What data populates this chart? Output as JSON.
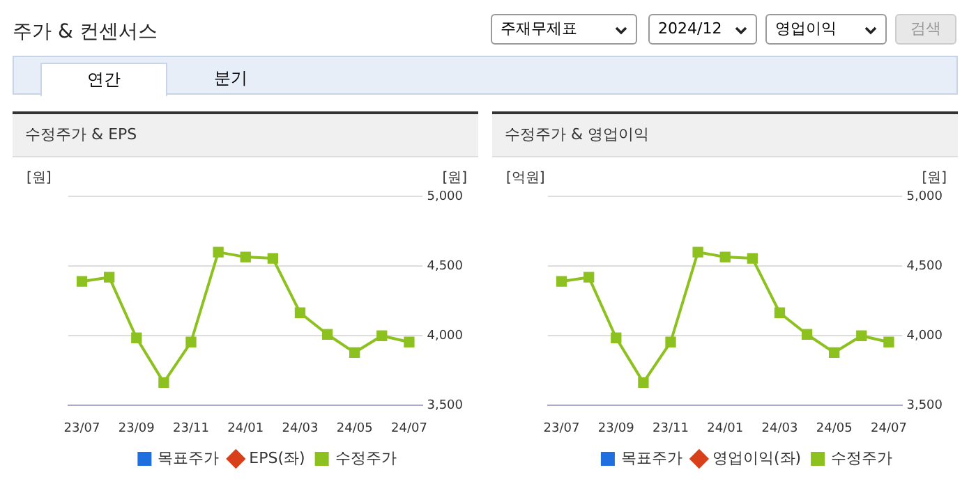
{
  "chart_data": [
    {
      "type": "other",
      "title": "주가 & 컨센서스",
      "annotations": [
        "주재무제표",
        "2024/12",
        "영업이익",
        "검색",
        "연간",
        "분기"
      ]
    },
    {
      "type": "line",
      "title": "수정주가 & EPS",
      "ylabel": "[원]",
      "y2label": "[원]",
      "categories": [
        "23/07",
        null,
        "23/09",
        null,
        "23/11",
        null,
        "24/01",
        null,
        "24/03",
        null,
        "24/05",
        null,
        "24/07"
      ],
      "series": [
        {
          "name": "목표주가",
          "color": "#1f6fe0",
          "marker": "square",
          "values": [
            null,
            null,
            null,
            null,
            null,
            null,
            null,
            null,
            null,
            null,
            null,
            null,
            null
          ]
        },
        {
          "name": "EPS(좌)",
          "color": "#d8401b",
          "marker": "diamond",
          "values": [
            null,
            null,
            null,
            null,
            null,
            null,
            null,
            null,
            null,
            null,
            null,
            null,
            null
          ]
        },
        {
          "name": "수정주가",
          "color": "#8cc11f",
          "marker": "square",
          "axis": "y2",
          "values": [
            4390,
            4420,
            3985,
            3665,
            3955,
            4600,
            4565,
            4555,
            4165,
            4010,
            3880,
            4000,
            3955
          ]
        }
      ],
      "y2lim": [
        3500,
        5000
      ],
      "y2ticks": [
        {
          "value": 3500,
          "label": "3,500"
        },
        {
          "value": 4000,
          "label": "4,000"
        },
        {
          "value": 4500,
          "label": "4,500"
        },
        {
          "value": 5000,
          "label": "5,000"
        }
      ],
      "grid": "y",
      "legend": "bottom"
    },
    {
      "type": "line",
      "title": "수정주가 & 영업이익",
      "ylabel": "[억원]",
      "y2label": "[원]",
      "categories": [
        "23/07",
        null,
        "23/09",
        null,
        "23/11",
        null,
        "24/01",
        null,
        "24/03",
        null,
        "24/05",
        null,
        "24/07"
      ],
      "series": [
        {
          "name": "목표주가",
          "color": "#1f6fe0",
          "marker": "square",
          "values": [
            null,
            null,
            null,
            null,
            null,
            null,
            null,
            null,
            null,
            null,
            null,
            null,
            null
          ]
        },
        {
          "name": "영업이익(좌)",
          "color": "#d8401b",
          "marker": "diamond",
          "values": [
            null,
            null,
            null,
            null,
            null,
            null,
            null,
            null,
            null,
            null,
            null,
            null,
            null
          ]
        },
        {
          "name": "수정주가",
          "color": "#8cc11f",
          "marker": "square",
          "axis": "y2",
          "values": [
            4390,
            4420,
            3985,
            3665,
            3955,
            4600,
            4565,
            4555,
            4165,
            4010,
            3880,
            4000,
            3955
          ]
        }
      ],
      "y2lim": [
        3500,
        5000
      ],
      "y2ticks": [
        {
          "value": 3500,
          "label": "3,500"
        },
        {
          "value": 4000,
          "label": "4,000"
        },
        {
          "value": 4500,
          "label": "4,500"
        },
        {
          "value": 5000,
          "label": "5,000"
        }
      ],
      "grid": "y",
      "legend": "bottom"
    }
  ]
}
